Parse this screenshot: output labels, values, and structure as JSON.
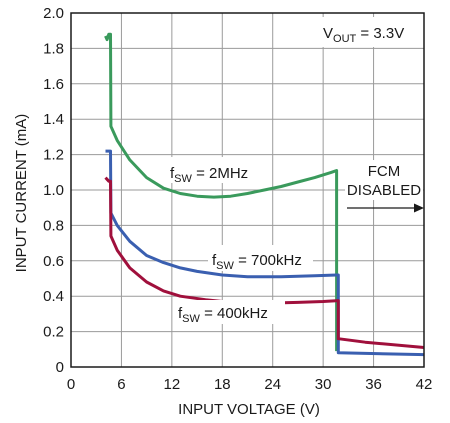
{
  "chart_data": {
    "type": "line",
    "title": "",
    "xlabel": "INPUT VOLTAGE (V)",
    "ylabel": "INPUT CURRENT (mA)",
    "xlim": [
      0,
      42
    ],
    "ylim": [
      0,
      2.0
    ],
    "x_ticks": [
      "0",
      "6",
      "12",
      "18",
      "24",
      "30",
      "36",
      "42"
    ],
    "y_ticks": [
      "0",
      "0.2",
      "0.4",
      "0.6",
      "0.8",
      "1.0",
      "1.2",
      "1.4",
      "1.6",
      "1.8",
      "2.0"
    ],
    "grid": true,
    "colors": {
      "green": "#3a9a5c",
      "blue": "#3a5fb0",
      "red": "#a0103c",
      "grid": "#9a9a9a"
    },
    "series": [
      {
        "name_parts": [
          "f",
          "SW",
          " = 2MHz"
        ],
        "color": "#3a9a5c",
        "points": [
          [
            4.1,
            1.87
          ],
          [
            4.3,
            1.85
          ],
          [
            4.5,
            1.88
          ],
          [
            4.7,
            1.88
          ],
          [
            4.75,
            1.36
          ],
          [
            5.5,
            1.28
          ],
          [
            7,
            1.17
          ],
          [
            9,
            1.07
          ],
          [
            11,
            1.01
          ],
          [
            13,
            0.98
          ],
          [
            15,
            0.965
          ],
          [
            17,
            0.96
          ],
          [
            19,
            0.965
          ],
          [
            21,
            0.98
          ],
          [
            23,
            1.0
          ],
          [
            25,
            1.02
          ],
          [
            27,
            1.045
          ],
          [
            29,
            1.07
          ],
          [
            31,
            1.1
          ],
          [
            31.6,
            1.11
          ],
          [
            31.6,
            0.09
          ]
        ]
      },
      {
        "name_parts": [
          "f",
          "SW",
          " = 700kHz"
        ],
        "color": "#3a5fb0",
        "points": [
          [
            4.1,
            1.22
          ],
          [
            4.6,
            1.22
          ],
          [
            4.7,
            1.22
          ],
          [
            4.75,
            0.87
          ],
          [
            5.5,
            0.8
          ],
          [
            7,
            0.71
          ],
          [
            9,
            0.63
          ],
          [
            11,
            0.59
          ],
          [
            13,
            0.56
          ],
          [
            15,
            0.54
          ],
          [
            18,
            0.52
          ],
          [
            21,
            0.51
          ],
          [
            25,
            0.51
          ],
          [
            29,
            0.515
          ],
          [
            31.6,
            0.52
          ],
          [
            31.8,
            0.52
          ],
          [
            31.8,
            0.08
          ],
          [
            42,
            0.07
          ]
        ]
      },
      {
        "name_parts": [
          "f",
          "SW",
          " = 400kHz"
        ],
        "color": "#a0103c",
        "points": [
          [
            4.1,
            1.07
          ],
          [
            4.5,
            1.05
          ],
          [
            4.7,
            1.05
          ],
          [
            4.75,
            0.74
          ],
          [
            5.5,
            0.66
          ],
          [
            7,
            0.56
          ],
          [
            9,
            0.48
          ],
          [
            11,
            0.43
          ],
          [
            13,
            0.4
          ],
          [
            16,
            0.38
          ],
          [
            19,
            0.365
          ],
          [
            23,
            0.36
          ],
          [
            27,
            0.365
          ],
          [
            30,
            0.37
          ],
          [
            31.8,
            0.375
          ],
          [
            31.8,
            0.16
          ],
          [
            35,
            0.14
          ],
          [
            42,
            0.11
          ]
        ]
      }
    ],
    "annotations": {
      "vout_parts": [
        "V",
        "OUT",
        " = 3.3V"
      ],
      "fcm_line1": "FCM",
      "fcm_line2": "DISABLED"
    }
  }
}
